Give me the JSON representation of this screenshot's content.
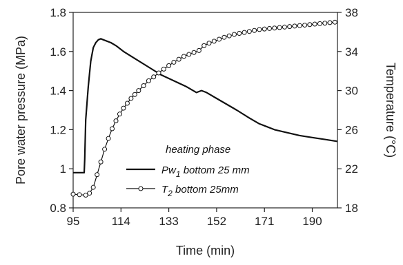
{
  "chart_data": {
    "type": "line",
    "title": "",
    "xlabel": "Time (min)",
    "ylabel": "Pore water pressure (MPa)",
    "y2label": "Temperature (°C)",
    "xlim": [
      95,
      200
    ],
    "ylim": [
      0.8,
      1.8
    ],
    "y2lim": [
      18,
      38
    ],
    "xticks": [
      "95",
      "114",
      "133",
      "152",
      "171",
      "190"
    ],
    "yticks": [
      "0.8",
      "1",
      "1.2",
      "1.4",
      "1.6",
      "1.8"
    ],
    "y2ticks": [
      "18",
      "22",
      "26",
      "30",
      "34",
      "38"
    ],
    "legend": {
      "title": "heating phase",
      "placement": "lower-center",
      "entries": [
        {
          "label_main": "Pw",
          "label_sub": "1",
          "label_rest": " bottom 25 mm",
          "marker": "line"
        },
        {
          "label_main": "T",
          "label_sub": "2",
          "label_rest": " bottom 25mm",
          "marker": "circle-line"
        }
      ]
    },
    "series": [
      {
        "axis": "left",
        "marker": "none",
        "x": [
          95,
          99.4,
          99.6,
          100,
          101,
          102,
          103,
          104,
          105,
          106,
          107,
          108,
          110,
          112,
          115,
          120,
          125,
          130,
          135,
          140,
          144,
          146,
          148,
          152,
          156,
          160,
          165,
          169,
          171,
          175,
          180,
          185,
          190,
          195,
          200
        ],
        "y": [
          0.98,
          0.98,
          1.05,
          1.25,
          1.42,
          1.55,
          1.62,
          1.645,
          1.66,
          1.665,
          1.66,
          1.655,
          1.645,
          1.63,
          1.6,
          1.56,
          1.52,
          1.48,
          1.45,
          1.42,
          1.39,
          1.4,
          1.39,
          1.36,
          1.33,
          1.3,
          1.26,
          1.23,
          1.22,
          1.2,
          1.185,
          1.17,
          1.16,
          1.15,
          1.14
        ]
      },
      {
        "axis": "right",
        "marker": "circle",
        "x": [
          95,
          97.5,
          100,
          101.5,
          103,
          104.5,
          106,
          107.5,
          109,
          110.5,
          112,
          113.5,
          115,
          116.5,
          118,
          119.5,
          121,
          123,
          125,
          127,
          129,
          131,
          133,
          135,
          137,
          139,
          141,
          143,
          145,
          147,
          149,
          151,
          153,
          155,
          157,
          159,
          161,
          163,
          165,
          167,
          169,
          171,
          173,
          175,
          177,
          179,
          181,
          183,
          185,
          187,
          189,
          191,
          193,
          195,
          197,
          199
        ],
        "y": [
          19.4,
          19.35,
          19.3,
          19.5,
          20.1,
          21.4,
          22.7,
          24.0,
          25.1,
          26.1,
          26.9,
          27.6,
          28.2,
          28.7,
          29.2,
          29.6,
          30.0,
          30.5,
          31.0,
          31.4,
          31.8,
          32.2,
          32.55,
          32.9,
          33.2,
          33.5,
          33.7,
          33.9,
          34.1,
          34.6,
          34.85,
          35.05,
          35.25,
          35.45,
          35.6,
          35.75,
          35.85,
          35.95,
          36.05,
          36.15,
          36.25,
          36.3,
          36.35,
          36.4,
          36.45,
          36.5,
          36.55,
          36.6,
          36.65,
          36.7,
          36.75,
          36.8,
          36.85,
          36.9,
          36.95,
          37.0
        ]
      }
    ]
  }
}
